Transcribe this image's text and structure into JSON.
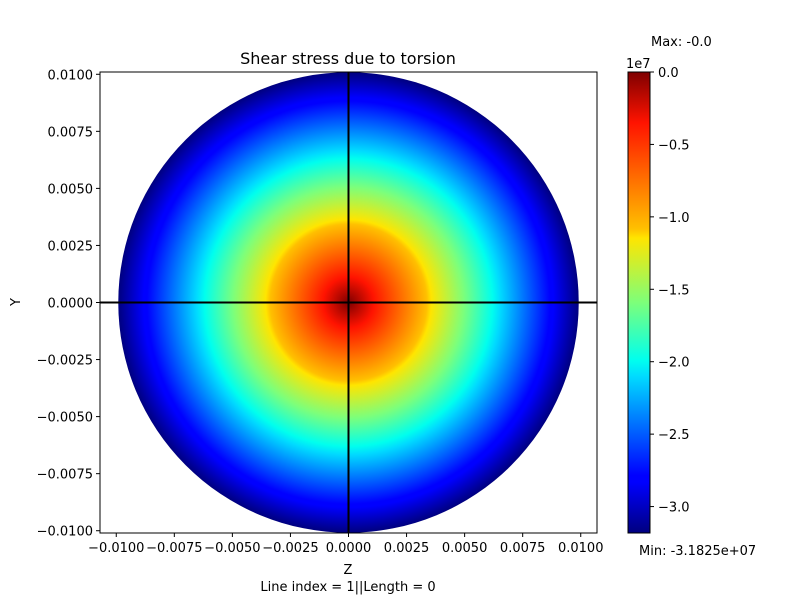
{
  "chart_data": {
    "type": "heatmap",
    "title": "Shear stress due to torsion",
    "xlabel": "Z",
    "ylabel": "Y",
    "xlabel_sub": "Line index = 1||Length = 0",
    "xlim": [
      -0.0107,
      0.0107
    ],
    "ylim": [
      -0.0101,
      0.0101
    ],
    "x_ticks": [
      -0.01,
      -0.0075,
      -0.005,
      -0.0025,
      0.0,
      0.0025,
      0.005,
      0.0075,
      0.01
    ],
    "x_tick_labels": [
      "−0.0100",
      "−0.0075",
      "−0.0050",
      "−0.0025",
      "0.0000",
      "0.0025",
      "0.0050",
      "0.0075",
      "0.0100"
    ],
    "y_ticks": [
      0.01,
      0.0075,
      0.005,
      0.0025,
      0.0,
      -0.0025,
      -0.005,
      -0.0075,
      -0.01
    ],
    "y_tick_labels": [
      "0.0100",
      "0.0075",
      "0.0050",
      "0.0025",
      "0.0000",
      "−0.0025",
      "−0.0050",
      "−0.0075",
      "−0.0100"
    ],
    "section": {
      "shape": "circle",
      "center": [
        0.0,
        0.0
      ],
      "radius": 0.01
    },
    "field": {
      "center_value": 0.0,
      "edge_value": -31825000,
      "profile": "linear-radial"
    },
    "crosshair": {
      "z": 0.0,
      "y": 0.0
    },
    "colorbar": {
      "colormap": "jet",
      "range": [
        -31825000,
        0
      ],
      "offset_label": "1e7",
      "ticks": [
        0.0,
        -5000000,
        -10000000,
        -15000000,
        -20000000,
        -25000000,
        -30000000
      ],
      "tick_labels": [
        "0.0",
        "−0.5",
        "−1.0",
        "−1.5",
        "−2.0",
        "−2.5",
        "−3.0"
      ],
      "max_label": "Max: -0.0",
      "min_label": "Min: -3.1825e+07"
    }
  }
}
